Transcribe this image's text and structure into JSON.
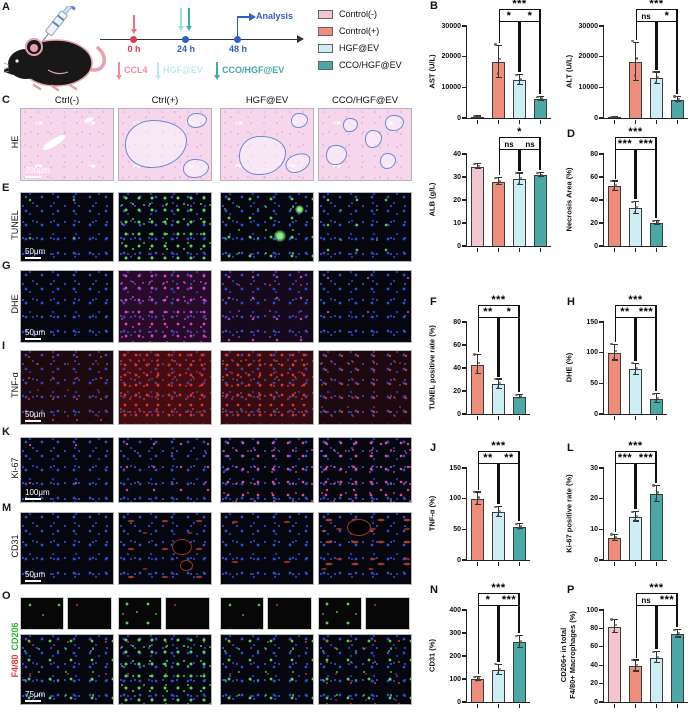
{
  "panels": {
    "a": "A",
    "b": "B",
    "c": "C",
    "d": "D",
    "e": "E",
    "f": "F",
    "g": "G",
    "h": "H",
    "i": "I",
    "j": "J",
    "k": "K",
    "l": "L",
    "m": "M",
    "n": "N",
    "o": "O",
    "p": "P"
  },
  "timeline": {
    "t0": "0 h",
    "t24": "24 h",
    "t48": "48 h",
    "analysis": "Analysis",
    "colors": {
      "red": "#e23a55",
      "blue": "#2f5fc4"
    },
    "injections": [
      {
        "label": "CCL4",
        "color": "#f08f9b"
      },
      {
        "label": "HGF@EV",
        "color": "#bfe8ee"
      },
      {
        "label": "CCO/HGF@EV",
        "color": "#44a8a4"
      }
    ]
  },
  "legend": [
    {
      "label": "Control(-)",
      "color": "#f3c6cf"
    },
    {
      "label": "Control(+)",
      "color": "#ef8d7c"
    },
    {
      "label": "HGF@EV",
      "color": "#cdeef2"
    },
    {
      "label": "CCO/HGF@EV",
      "color": "#4aa9a4"
    }
  ],
  "group_colors": [
    "#f3c6cf",
    "#ef8d7c",
    "#cdeef2",
    "#4aa9a4"
  ],
  "microscopy": {
    "columns": [
      "Ctrl(-)",
      "Ctrl(+)",
      "HGF@EV",
      "CCO/HGF@EV"
    ],
    "rows": [
      {
        "label": "HE",
        "scale": "200μm"
      },
      {
        "label": "TUNEL",
        "scale": "50μm"
      },
      {
        "label": "DHE",
        "scale": "50μm"
      },
      {
        "label": "TNF-α",
        "scale": "50μm"
      },
      {
        "label": "Ki-67",
        "scale": "100μm"
      },
      {
        "label": "CD31",
        "scale": "50μm"
      },
      {
        "label_red": "F4/80",
        "label_green": "CD206",
        "scale": "75μm"
      }
    ]
  },
  "chart_data": [
    {
      "panel": "B",
      "type": "bar",
      "ylabel": "AST (U/L)",
      "ymax": 30000,
      "yticks": [
        0,
        10000,
        20000,
        30000
      ],
      "bars": [
        {
          "group": "Control(-)",
          "ci": 0,
          "value": 300,
          "err": 150
        },
        {
          "group": "Control(+)",
          "ci": 1,
          "value": 18200,
          "err": 5200
        },
        {
          "group": "HGF@EV",
          "ci": 2,
          "value": 12300,
          "err": 1600
        },
        {
          "group": "CCO/HGF@EV",
          "ci": 3,
          "value": 6200,
          "err": 600
        }
      ],
      "sig": [
        {
          "a": 1,
          "b": 3,
          "label": "***",
          "row": 0
        },
        {
          "a": 1,
          "b": 2,
          "label": "*",
          "row": 1
        },
        {
          "a": 2,
          "b": 3,
          "label": "*",
          "row": 1
        }
      ]
    },
    {
      "panel": "",
      "type": "bar",
      "ylabel": "ALT (U/L)",
      "ymax": 30000,
      "yticks": [
        0,
        10000,
        20000,
        30000
      ],
      "bars": [
        {
          "group": "Control(-)",
          "ci": 0,
          "value": 250,
          "err": 120
        },
        {
          "group": "Control(+)",
          "ci": 1,
          "value": 18200,
          "err": 6200
        },
        {
          "group": "HGF@EV",
          "ci": 2,
          "value": 12900,
          "err": 1900
        },
        {
          "group": "CCO/HGF@EV",
          "ci": 3,
          "value": 6000,
          "err": 900
        }
      ],
      "sig": [
        {
          "a": 1,
          "b": 3,
          "label": "***",
          "row": 0
        },
        {
          "a": 1,
          "b": 2,
          "label": "ns",
          "row": 1
        },
        {
          "a": 2,
          "b": 3,
          "label": "*",
          "row": 1
        }
      ]
    },
    {
      "panel": "",
      "type": "bar",
      "ylabel": "ALB (g/L)",
      "ymax": 40,
      "yticks": [
        0,
        10,
        20,
        30,
        40
      ],
      "bars": [
        {
          "group": "Control(-)",
          "ci": 0,
          "value": 34.5,
          "err": 1
        },
        {
          "group": "Control(+)",
          "ci": 1,
          "value": 28,
          "err": 1.5
        },
        {
          "group": "HGF@EV",
          "ci": 2,
          "value": 29,
          "err": 2.5
        },
        {
          "group": "CCO/HGF@EV",
          "ci": 3,
          "value": 30.8,
          "err": 0.8
        }
      ],
      "sig": [
        {
          "a": 1,
          "b": 3,
          "label": "*",
          "row": 0
        },
        {
          "a": 1,
          "b": 2,
          "label": "ns",
          "row": 1
        },
        {
          "a": 2,
          "b": 3,
          "label": "ns",
          "row": 1
        }
      ]
    },
    {
      "panel": "D",
      "type": "bar",
      "ylabel": "Necrosis Area (%)",
      "ymax": 80,
      "yticks": [
        0,
        20,
        40,
        60,
        80
      ],
      "bars": [
        {
          "group": "Control(+)",
          "ci": 1,
          "value": 52,
          "err": 4
        },
        {
          "group": "HGF@EV",
          "ci": 2,
          "value": 33,
          "err": 5
        },
        {
          "group": "CCO/HGF@EV",
          "ci": 3,
          "value": 20,
          "err": 1.5
        }
      ],
      "sig": [
        {
          "a": 0,
          "b": 2,
          "label": "***",
          "row": 0
        },
        {
          "a": 0,
          "b": 1,
          "label": "***",
          "row": 1
        },
        {
          "a": 1,
          "b": 2,
          "label": "***",
          "row": 1
        }
      ]
    },
    {
      "panel": "F",
      "type": "bar",
      "ylabel": "TUNEL positive rate (%)",
      "ymax": 80,
      "yticks": [
        0,
        20,
        40,
        60,
        80
      ],
      "bars": [
        {
          "group": "Control(+)",
          "ci": 1,
          "value": 43,
          "err": 8
        },
        {
          "group": "HGF@EV",
          "ci": 2,
          "value": 26,
          "err": 4
        },
        {
          "group": "CCO/HGF@EV",
          "ci": 3,
          "value": 15,
          "err": 1.5
        }
      ],
      "sig": [
        {
          "a": 0,
          "b": 2,
          "label": "***",
          "row": 0
        },
        {
          "a": 0,
          "b": 1,
          "label": "**",
          "row": 1
        },
        {
          "a": 1,
          "b": 2,
          "label": "*",
          "row": 1
        }
      ]
    },
    {
      "panel": "H",
      "type": "bar",
      "ylabel": "DHE (%)",
      "ymax": 150,
      "yticks": [
        0,
        50,
        100,
        150
      ],
      "bars": [
        {
          "group": "Control(+)",
          "ci": 1,
          "value": 100,
          "err": 13
        },
        {
          "group": "HGF@EV",
          "ci": 2,
          "value": 73,
          "err": 9
        },
        {
          "group": "CCO/HGF@EV",
          "ci": 3,
          "value": 25,
          "err": 7
        }
      ],
      "sig": [
        {
          "a": 0,
          "b": 2,
          "label": "***",
          "row": 0
        },
        {
          "a": 0,
          "b": 1,
          "label": "**",
          "row": 1
        },
        {
          "a": 1,
          "b": 2,
          "label": "***",
          "row": 1
        }
      ]
    },
    {
      "panel": "J",
      "type": "bar",
      "ylabel": "TNF-α (%)",
      "ymax": 150,
      "yticks": [
        0,
        50,
        100,
        150
      ],
      "bars": [
        {
          "group": "Control(+)",
          "ci": 1,
          "value": 100,
          "err": 10
        },
        {
          "group": "HGF@EV",
          "ci": 2,
          "value": 78,
          "err": 8
        },
        {
          "group": "CCO/HGF@EV",
          "ci": 3,
          "value": 54,
          "err": 4
        }
      ],
      "sig": [
        {
          "a": 0,
          "b": 2,
          "label": "***",
          "row": 0
        },
        {
          "a": 0,
          "b": 1,
          "label": "**",
          "row": 1
        },
        {
          "a": 1,
          "b": 2,
          "label": "**",
          "row": 1
        }
      ]
    },
    {
      "panel": "L",
      "type": "bar",
      "ylabel": "Ki-67 positive rate (%)",
      "ymax": 30,
      "yticks": [
        0,
        10,
        20,
        30
      ],
      "bars": [
        {
          "group": "Control(+)",
          "ci": 1,
          "value": 7.2,
          "err": 1
        },
        {
          "group": "HGF@EV",
          "ci": 2,
          "value": 14,
          "err": 1.5
        },
        {
          "group": "CCO/HGF@EV",
          "ci": 3,
          "value": 21.5,
          "err": 2.5
        }
      ],
      "sig": [
        {
          "a": 0,
          "b": 2,
          "label": "***",
          "row": 0
        },
        {
          "a": 0,
          "b": 1,
          "label": "***",
          "row": 1
        },
        {
          "a": 1,
          "b": 2,
          "label": "***",
          "row": 1
        }
      ]
    },
    {
      "panel": "N",
      "type": "bar",
      "ylabel": "CD31 (%)",
      "ymax": 400,
      "yticks": [
        0,
        100,
        200,
        300,
        400
      ],
      "bars": [
        {
          "group": "Control(+)",
          "ci": 1,
          "value": 100,
          "err": 8
        },
        {
          "group": "HGF@EV",
          "ci": 2,
          "value": 140,
          "err": 22
        },
        {
          "group": "CCO/HGF@EV",
          "ci": 3,
          "value": 260,
          "err": 25
        }
      ],
      "sig": [
        {
          "a": 0,
          "b": 2,
          "label": "***",
          "row": 0
        },
        {
          "a": 0,
          "b": 1,
          "label": "*",
          "row": 1
        },
        {
          "a": 1,
          "b": 2,
          "label": "***",
          "row": 1
        }
      ]
    },
    {
      "panel": "P",
      "type": "bar",
      "ylabel": "CD206+ in total\nF4/80+ Macrophages (%)",
      "ymax": 100,
      "yticks": [
        0,
        20,
        40,
        60,
        80,
        100
      ],
      "bars": [
        {
          "group": "Control(-)",
          "ci": 0,
          "value": 82,
          "err": 7
        },
        {
          "group": "Control(+)",
          "ci": 1,
          "value": 39,
          "err": 6
        },
        {
          "group": "HGF@EV",
          "ci": 2,
          "value": 48,
          "err": 6
        },
        {
          "group": "CCO/HGF@EV",
          "ci": 3,
          "value": 74,
          "err": 4
        }
      ],
      "sig": [
        {
          "a": 1,
          "b": 3,
          "label": "***",
          "row": 0
        },
        {
          "a": 1,
          "b": 2,
          "label": "ns",
          "row": 1
        },
        {
          "a": 2,
          "b": 3,
          "label": "***",
          "row": 1
        }
      ]
    }
  ]
}
